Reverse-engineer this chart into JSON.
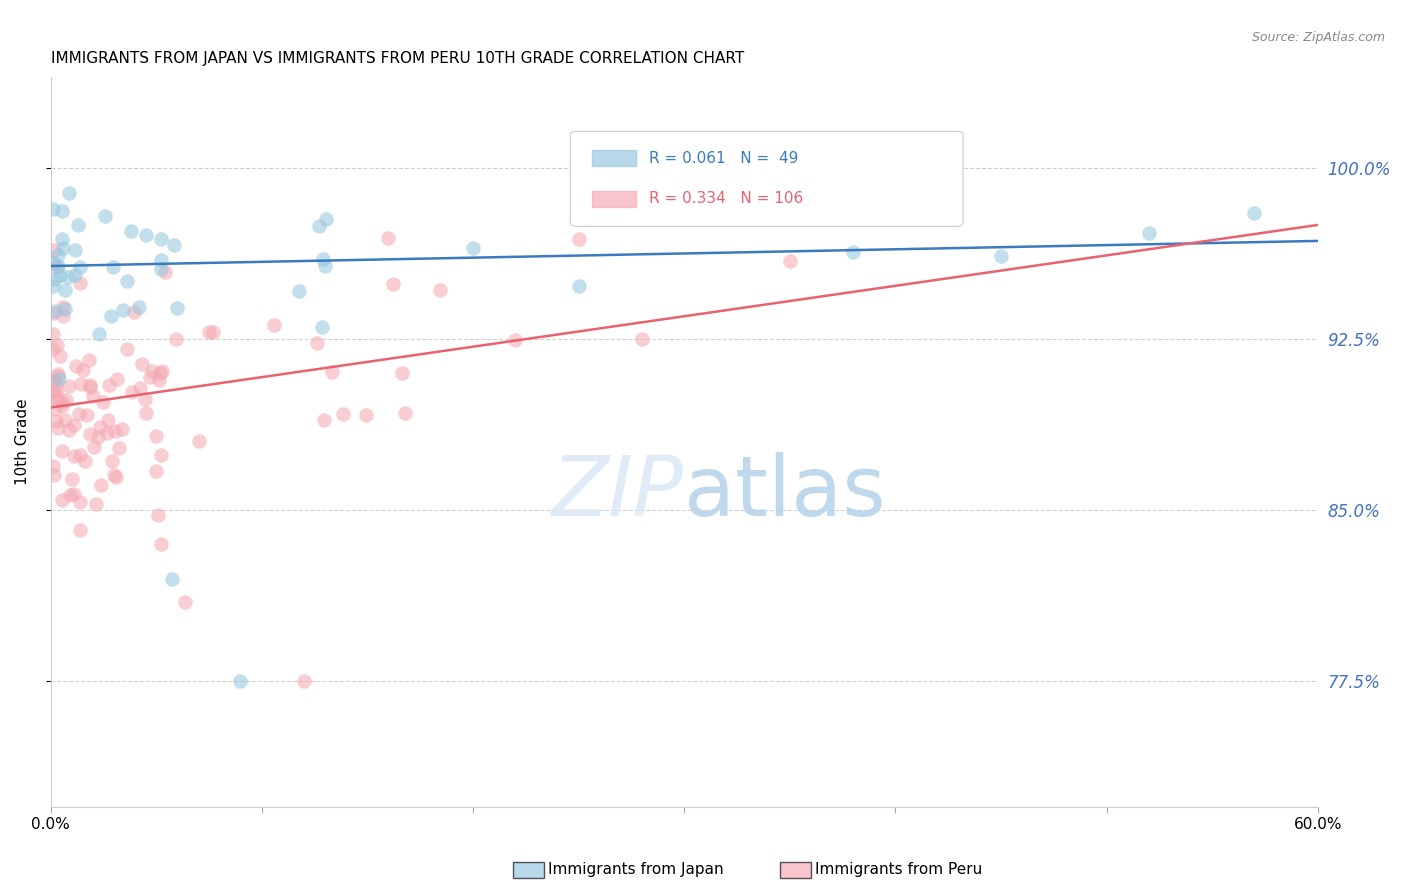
{
  "title": "IMMIGRANTS FROM JAPAN VS IMMIGRANTS FROM PERU 10TH GRADE CORRELATION CHART",
  "source": "Source: ZipAtlas.com",
  "ylabel": "10th Grade",
  "ytick_values": [
    0.775,
    0.85,
    0.925,
    1.0
  ],
  "xlim": [
    0.0,
    0.6
  ],
  "ylim": [
    0.72,
    1.04
  ],
  "legend_japan_R": "0.061",
  "legend_japan_N": "49",
  "legend_peru_R": "0.334",
  "legend_peru_N": "106",
  "japan_color": "#92c5de",
  "peru_color": "#f4a7b0",
  "japan_line_color": "#3a7bbf",
  "peru_line_color": "#e8636e",
  "right_axis_color": "#4472C4",
  "background_color": "#ffffff",
  "japan_trend_x0": 0.0,
  "japan_trend_y0": 0.957,
  "japan_trend_x1": 0.6,
  "japan_trend_y1": 0.968,
  "peru_trend_x0": 0.0,
  "peru_trend_y0": 0.895,
  "peru_trend_x1": 0.6,
  "peru_trend_y1": 0.975
}
